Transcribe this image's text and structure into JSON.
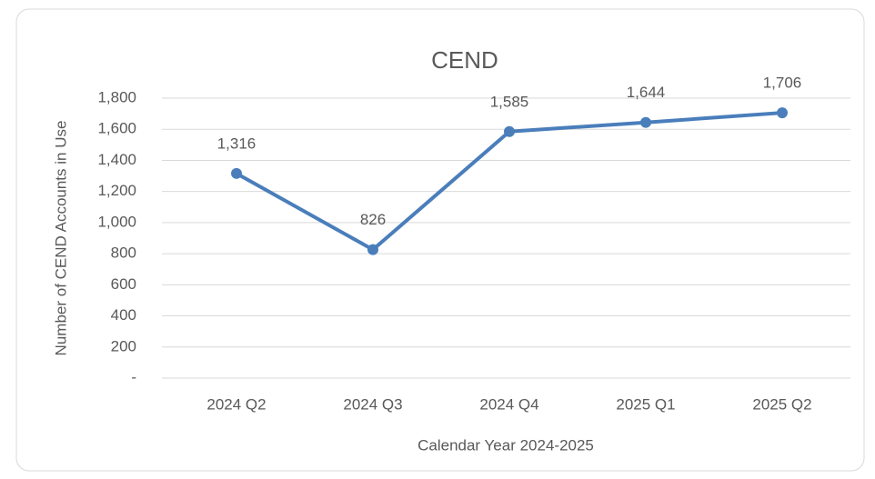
{
  "chart_data": {
    "type": "line",
    "title": "CEND",
    "x_label": "Calendar Year 2024-2025",
    "y_label": "Number of CEND Accounts in Use",
    "categories": [
      "2024 Q2",
      "2024 Q3",
      "2024 Q4",
      "2025 Q1",
      "2025 Q2"
    ],
    "series": [
      {
        "name": "CEND",
        "color": "#4a7ebb",
        "values": [
          1316,
          826,
          1585,
          1644,
          1706
        ],
        "value_labels": [
          "1,316",
          "826",
          "1,585",
          "1,644",
          "1,706"
        ]
      }
    ],
    "ylim": [
      0,
      1800
    ],
    "yticks": [
      {
        "value": 0,
        "label": "-"
      },
      200,
      400,
      600,
      800,
      {
        "value": 1000,
        "label": "1,000"
      },
      {
        "value": 1200,
        "label": "1,200"
      },
      {
        "value": 1400,
        "label": "1,400"
      },
      {
        "value": 1600,
        "label": "1,600"
      },
      {
        "value": 1800,
        "label": "1,800"
      }
    ],
    "grid": true
  }
}
